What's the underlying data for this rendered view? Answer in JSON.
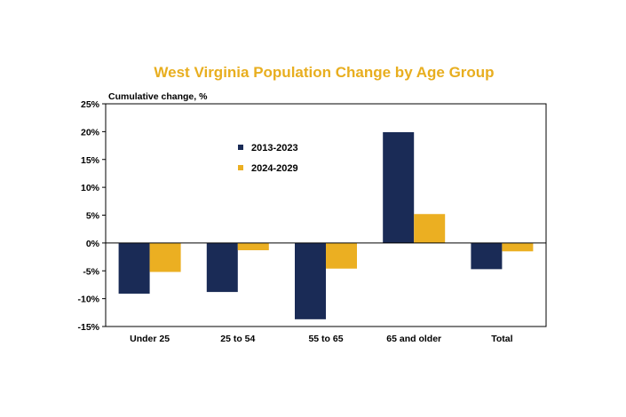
{
  "colors": {
    "title": "#E8AE1F",
    "series_1": "#1A2B56",
    "series_2": "#EBAF22",
    "axis": "#000000"
  },
  "chart_data": {
    "type": "bar",
    "title": "West Virginia Population Change by Age Group",
    "ylabel": "Cumulative change, %",
    "xlabel": "",
    "categories": [
      "Under 25",
      "25 to 54",
      "55 to 65",
      "65 and older",
      "Total"
    ],
    "series": [
      {
        "name": "2013-2023",
        "values": [
          -9.1,
          -8.8,
          -13.7,
          19.9,
          -4.7
        ]
      },
      {
        "name": "2024-2029",
        "values": [
          -5.2,
          -1.3,
          -4.6,
          5.2,
          -1.5
        ]
      }
    ],
    "ylim": [
      -15,
      25
    ],
    "yticks": [
      25,
      20,
      15,
      10,
      5,
      0,
      -5,
      -10,
      -15
    ],
    "ytick_labels": [
      "25%",
      "20%",
      "15%",
      "10%",
      "5%",
      "0%",
      "-5%",
      "-10%",
      "-15%"
    ],
    "grid": false,
    "legend_position": "inside-upper-left"
  }
}
